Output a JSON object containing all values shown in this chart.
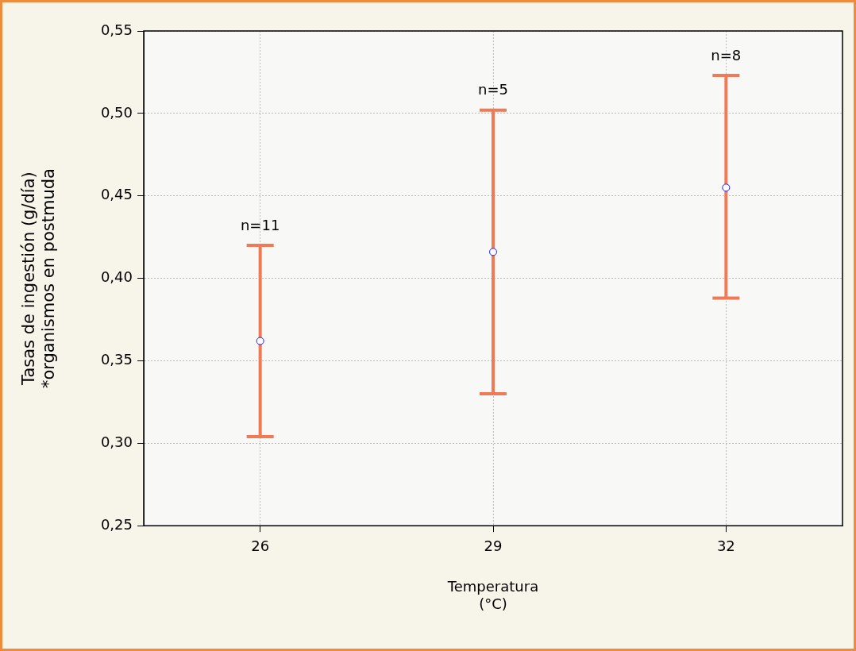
{
  "chart_data": {
    "type": "scatter",
    "xlabel": "Temperatura\n(°C)",
    "ylabel": "Tasas de ingestión (g/día)\n*organismos en postmuda",
    "categories": [
      "26",
      "29",
      "32"
    ],
    "series": [
      {
        "color": "#1a1aff",
        "values": [
          0.362,
          0.416,
          0.455
        ],
        "errors": [
          [
            0.304,
            0.42
          ],
          [
            0.33,
            0.502
          ],
          [
            0.388,
            0.523
          ]
        ]
      }
    ],
    "ylim": [
      0.25,
      0.55
    ],
    "yticks": [
      {
        "value": 0.25,
        "label": "0,25"
      },
      {
        "value": 0.3,
        "label": "0,30"
      },
      {
        "value": 0.35,
        "label": "0,35"
      },
      {
        "value": 0.4,
        "label": "0,40"
      },
      {
        "value": 0.45,
        "label": "0,45"
      },
      {
        "value": 0.5,
        "label": "0,50"
      },
      {
        "value": 0.55,
        "label": "0,55"
      }
    ],
    "annotations": [
      {
        "text": "n=11",
        "x": "26",
        "y": 0.42
      },
      {
        "text": "n=5",
        "x": "29",
        "y": 0.502
      },
      {
        "text": "n=8",
        "x": "32",
        "y": 0.523
      }
    ],
    "grid": true,
    "marker": "circle",
    "legend": false
  }
}
